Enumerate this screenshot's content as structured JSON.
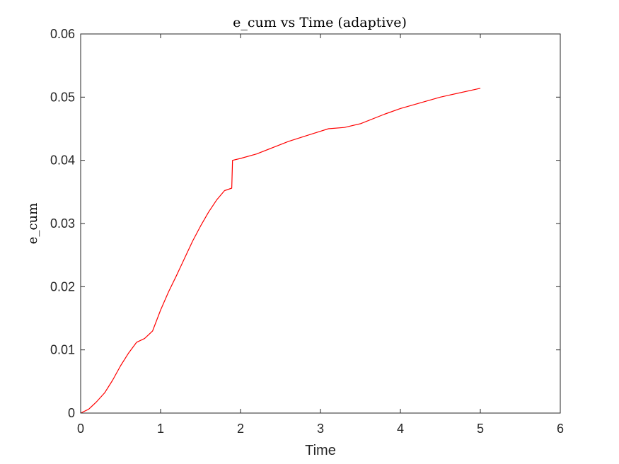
{
  "chart_data": {
    "type": "line",
    "title": "e_cum vs Time (adaptive)",
    "xlabel": "Time",
    "ylabel": "e_cum",
    "xlim": [
      0,
      6
    ],
    "ylim": [
      0,
      0.06
    ],
    "xticks": [
      0,
      1,
      2,
      3,
      4,
      5,
      6
    ],
    "xtick_labels": [
      "0",
      "1",
      "2",
      "3",
      "4",
      "5",
      "6"
    ],
    "yticks": [
      0,
      0.01,
      0.02,
      0.03,
      0.04,
      0.05,
      0.06
    ],
    "ytick_labels": [
      "0",
      "0.01",
      "0.02",
      "0.03",
      "0.04",
      "0.05",
      "0.06"
    ],
    "grid": false,
    "box": true,
    "series": [
      {
        "color": "#ff0000",
        "x": [
          0,
          0.1,
          0.2,
          0.3,
          0.4,
          0.5,
          0.6,
          0.7,
          0.8,
          0.9,
          1.0,
          1.1,
          1.2,
          1.3,
          1.4,
          1.5,
          1.6,
          1.7,
          1.8,
          1.89,
          1.9,
          2.0,
          2.2,
          2.4,
          2.6,
          2.8,
          3.0,
          3.1,
          3.3,
          3.5,
          3.8,
          4.0,
          4.5,
          5.0
        ],
        "y": [
          0,
          0.0006,
          0.0018,
          0.0032,
          0.0052,
          0.0075,
          0.0095,
          0.0112,
          0.0118,
          0.013,
          0.0163,
          0.0192,
          0.0218,
          0.0245,
          0.0272,
          0.0296,
          0.0318,
          0.0337,
          0.0352,
          0.0356,
          0.04,
          0.0403,
          0.041,
          0.042,
          0.043,
          0.0438,
          0.0446,
          0.045,
          0.0452,
          0.0458,
          0.0473,
          0.0482,
          0.05,
          0.0514
        ]
      }
    ]
  }
}
